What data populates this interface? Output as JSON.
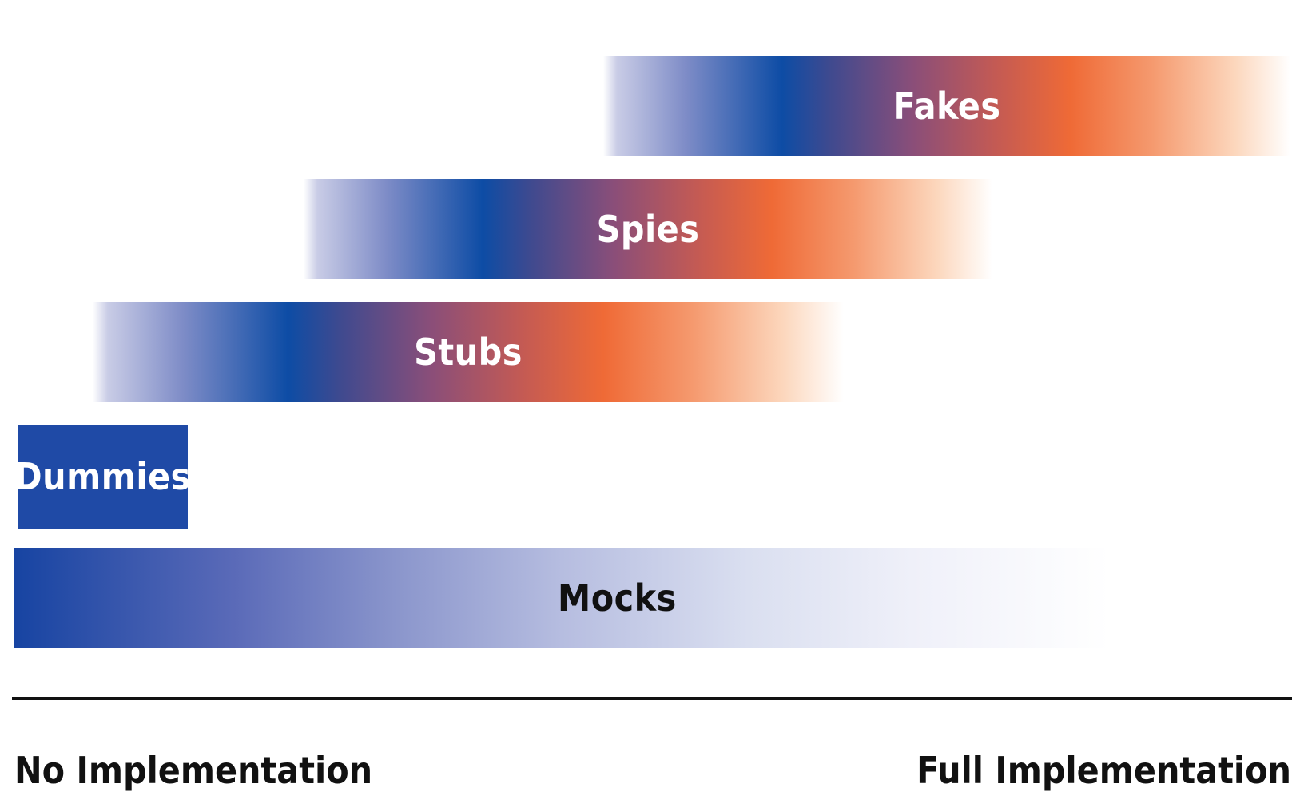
{
  "bars": {
    "fakes": "Fakes",
    "spies": "Spies",
    "stubs": "Stubs",
    "dummies": "Dummies",
    "mocks": "Mocks"
  },
  "axis": {
    "left_label": "No Implementation",
    "right_label": "Full Implementation"
  },
  "colors": {
    "blue": "#0d4ca5",
    "orange": "#ef6a36",
    "dummies_fill": "#1f4aa6",
    "axis_line": "#111111"
  }
}
